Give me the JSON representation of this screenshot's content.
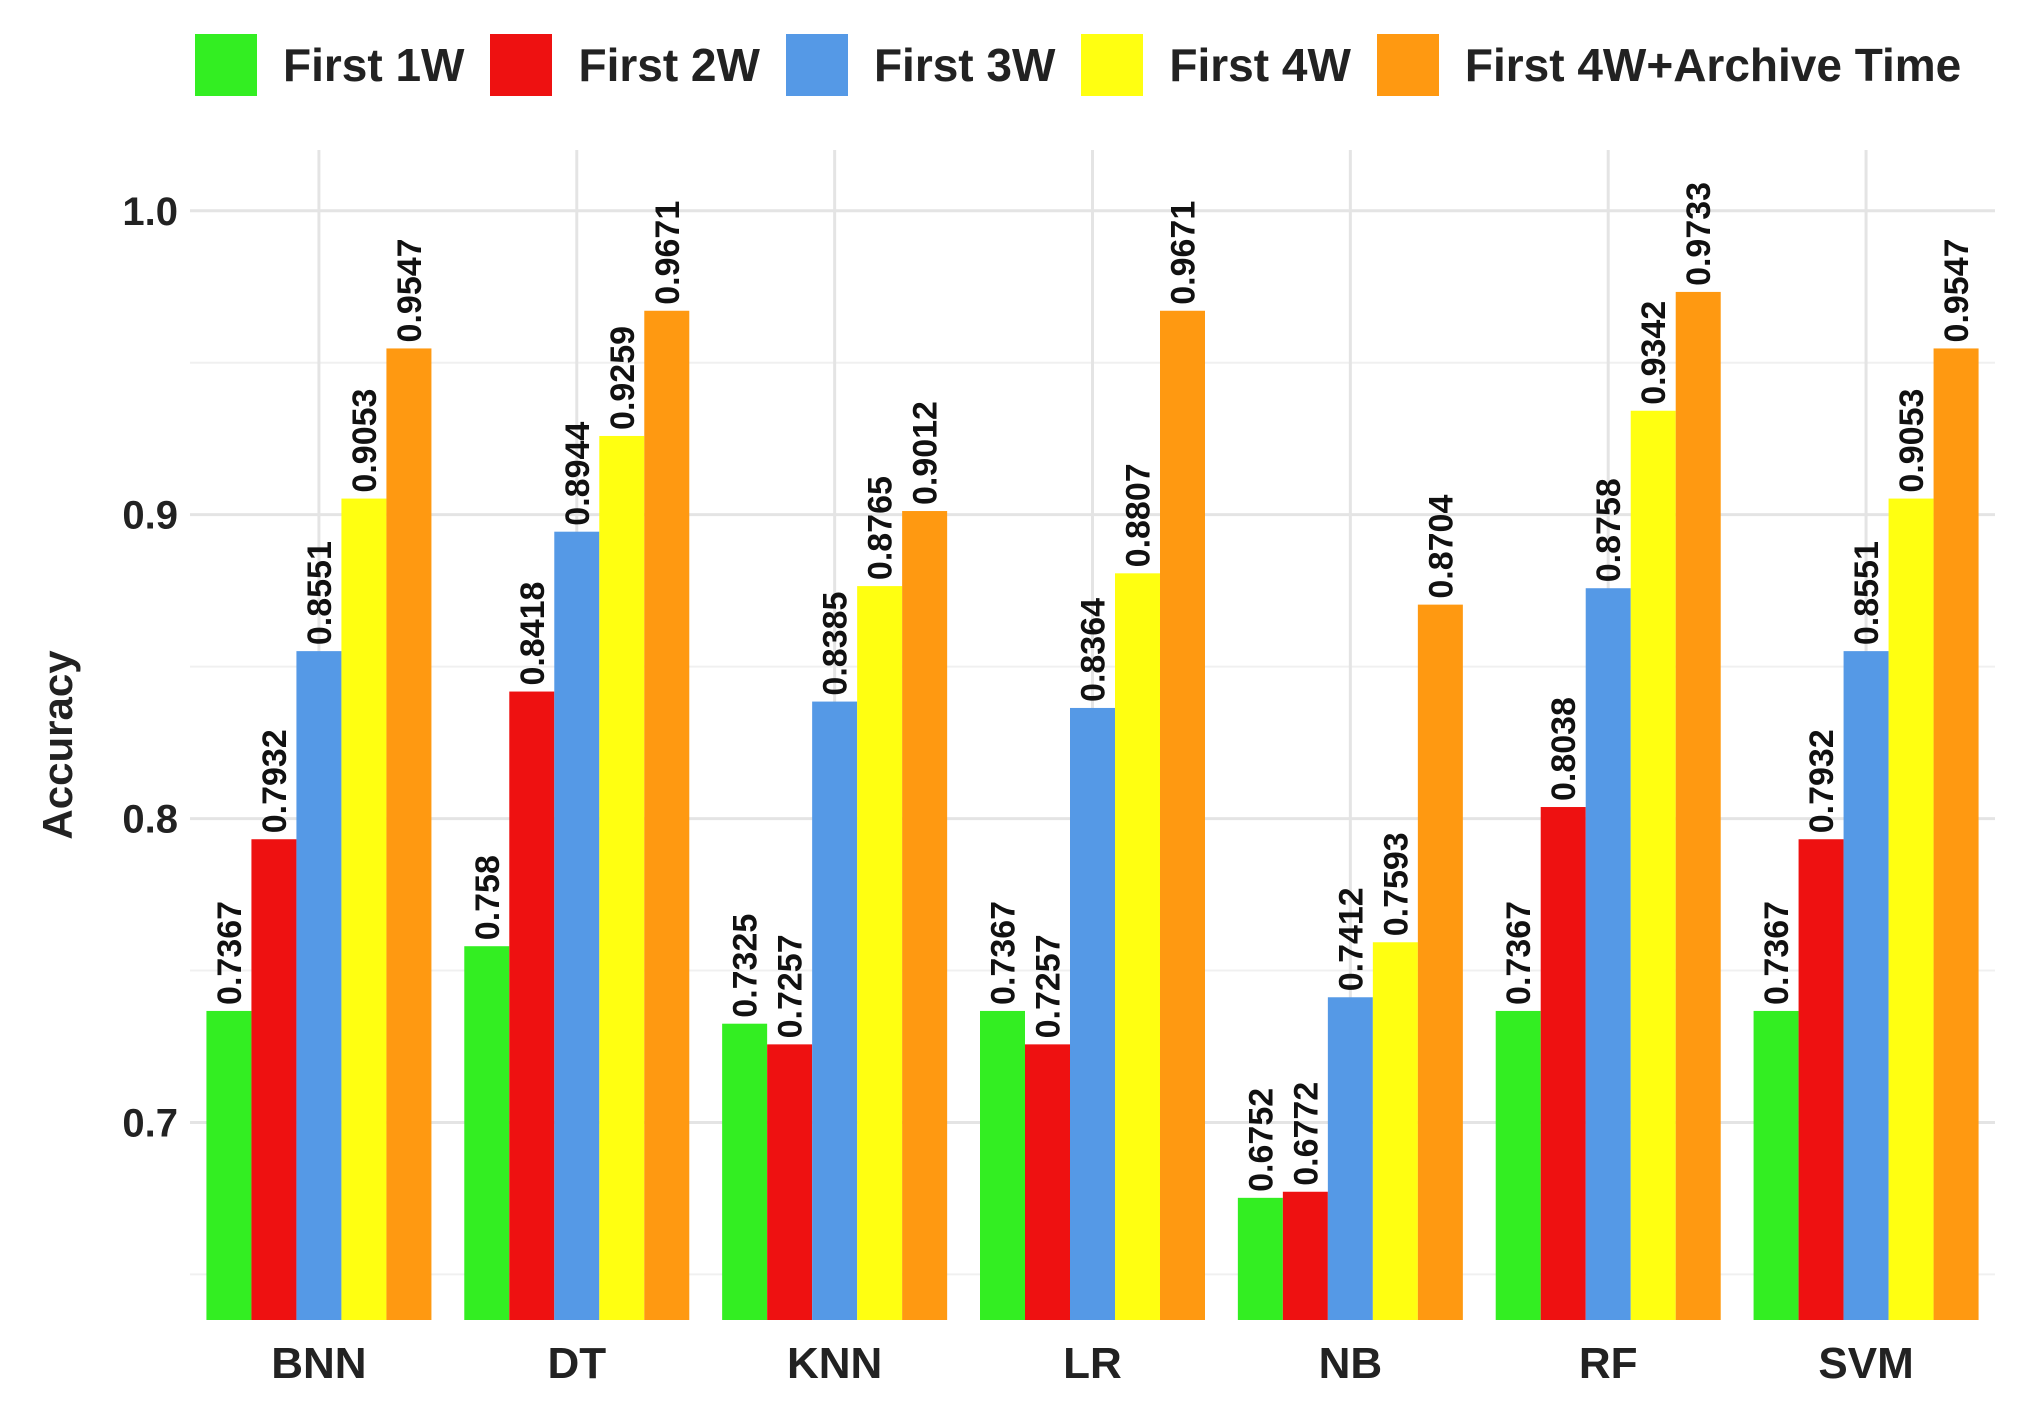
{
  "chart_data": {
    "type": "bar",
    "title": "",
    "xlabel": "",
    "ylabel": "Accuracy",
    "ylim": [
      0.635,
      1.02
    ],
    "yticks": [
      0.7,
      0.8,
      0.9,
      1.0
    ],
    "ytick_labels": [
      "0.7",
      "0.8",
      "0.9",
      "1.0"
    ],
    "grid": true,
    "legend_position": "top",
    "categories": [
      "BNN",
      "DT",
      "KNN",
      "LR",
      "NB",
      "RF",
      "SVM"
    ],
    "series": [
      {
        "name": "First 1W",
        "color": "#33ee22",
        "values": [
          0.7367,
          0.758,
          0.7325,
          0.7367,
          0.6752,
          0.7367,
          0.7367
        ],
        "labels": [
          "0.7367",
          "0.758",
          "0.7325",
          "0.7367",
          "0.6752",
          "0.7367",
          "0.7367"
        ]
      },
      {
        "name": "First 2W",
        "color": "#ee1111",
        "values": [
          0.7932,
          0.8418,
          0.7257,
          0.7257,
          0.6772,
          0.8038,
          0.7932
        ],
        "labels": [
          "0.7932",
          "0.8418",
          "0.7257",
          "0.7257",
          "0.6772",
          "0.8038",
          "0.7932"
        ]
      },
      {
        "name": "First 3W",
        "color": "#5599e6",
        "values": [
          0.8551,
          0.8944,
          0.8385,
          0.8364,
          0.7412,
          0.8758,
          0.8551
        ],
        "labels": [
          "0.8551",
          "0.8944",
          "0.8385",
          "0.8364",
          "0.7412",
          "0.8758",
          "0.8551"
        ]
      },
      {
        "name": "First 4W",
        "color": "#ffff11",
        "values": [
          0.9053,
          0.9259,
          0.8765,
          0.8807,
          0.7593,
          0.9342,
          0.9053
        ],
        "labels": [
          "0.9053",
          "0.9259",
          "0.8765",
          "0.8807",
          "0.7593",
          "0.9342",
          "0.9053"
        ]
      },
      {
        "name": "First 4W+Archive Time",
        "color": "#ff9911",
        "values": [
          0.9547,
          0.9671,
          0.9012,
          0.9671,
          0.8704,
          0.9733,
          0.9547
        ],
        "labels": [
          "0.9547",
          "0.9671",
          "0.9012",
          "0.9671",
          "0.8704",
          "0.9733",
          "0.9547"
        ]
      }
    ]
  },
  "legend": {
    "items": [
      {
        "label": "First 1W",
        "color": "#33ee22"
      },
      {
        "label": "First 2W",
        "color": "#ee1111"
      },
      {
        "label": "First 3W",
        "color": "#5599e6"
      },
      {
        "label": "First 4W",
        "color": "#ffff11"
      },
      {
        "label": "First 4W+Archive Time",
        "color": "#ff9911"
      }
    ]
  }
}
